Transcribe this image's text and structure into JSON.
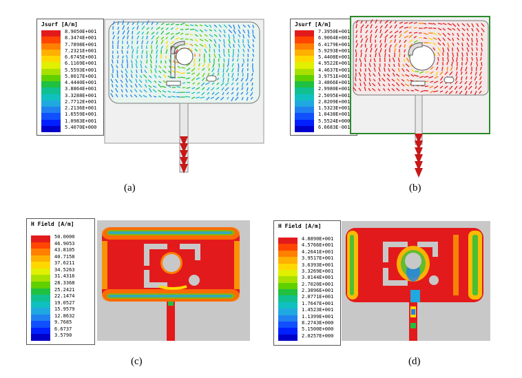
{
  "panels": [
    {
      "id": "a",
      "label": "(a)",
      "legend_title": "Jsurf [A/m]",
      "ticks": [
        "8.9050E+001",
        "8.3474E+001",
        "7.7898E+001",
        "7.2321E+001",
        "6.6745E+001",
        "6.1169E+001",
        "5.5593E+001",
        "5.0017E+001",
        "4.4440E+001",
        "3.8864E+001",
        "3.3288E+001",
        "2.7712E+001",
        "2.2136E+001",
        "1.6559E+001",
        "1.0983E+001",
        "5.4070E+000"
      ]
    },
    {
      "id": "b",
      "label": "(b)",
      "legend_title": "Jsurf [A/m]",
      "ticks": [
        "7.3950E+001",
        "6.9064E+001",
        "6.4179E+001",
        "5.9293E+001",
        "5.4408E+001",
        "4.9522E+001",
        "4.4637E+001",
        "3.9751E+001",
        "3.4866E+001",
        "2.9980E+001",
        "2.5095E+001",
        "2.0209E+001",
        "1.5323E+001",
        "1.0438E+001",
        "5.5524E+000",
        "6.6683E-001"
      ]
    },
    {
      "id": "c",
      "label": "(c)",
      "legend_title": "H Field [A/m]",
      "ticks": [
        "50.0000",
        "46.9053",
        "43.8105",
        "40.7158",
        "37.6211",
        "34.5263",
        "31.4316",
        "28.3368",
        "25.2421",
        "22.1474",
        "19.0527",
        "15.9579",
        "12.8632",
        "9.7685",
        "6.6737",
        "3.5790"
      ]
    },
    {
      "id": "d",
      "label": "(d)",
      "legend_title": "H Field [A/m]",
      "ticks": [
        "4.8890E+001",
        "4.5766E+001",
        "4.2641E+001",
        "3.9517E+001",
        "3.6393E+001",
        "3.3269E+001",
        "3.0144E+001",
        "2.7020E+001",
        "2.3896E+001",
        "2.0771E+001",
        "1.7647E+001",
        "1.4523E+001",
        "1.1399E+001",
        "8.2743E+000",
        "5.1500E+000",
        "2.0257E+000"
      ]
    }
  ],
  "colors": {
    "scale": [
      "#e31a1c",
      "#ff4500",
      "#ff7f00",
      "#ffb000",
      "#ffd800",
      "#e0f000",
      "#a8e000",
      "#60d000",
      "#20c040",
      "#10c090",
      "#10c0c0",
      "#20a8e0",
      "#2080f0",
      "#1050ff",
      "#0020ff",
      "#0000c8"
    ],
    "board": "#c8c8c8",
    "background": "#ffffff"
  }
}
